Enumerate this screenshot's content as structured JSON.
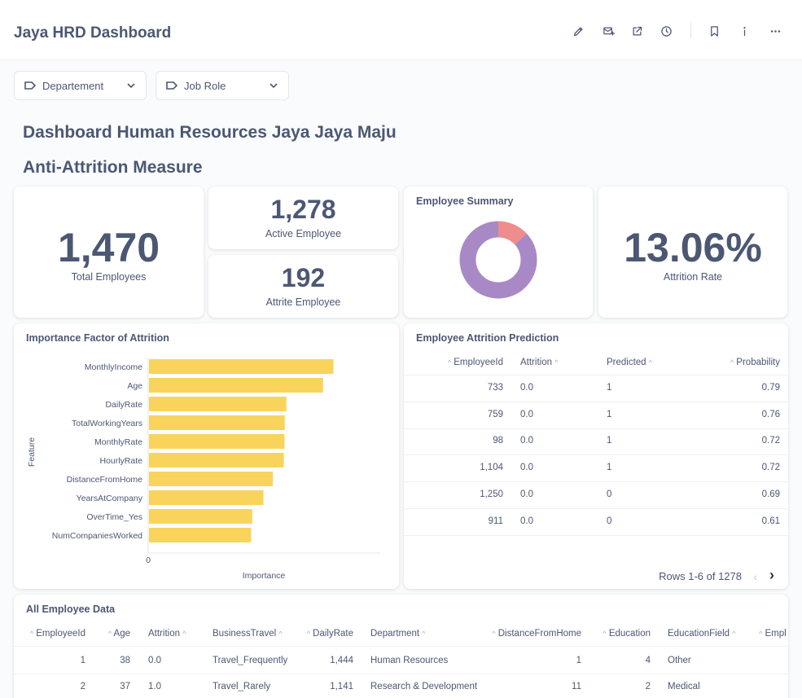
{
  "header": {
    "title": "Jaya HRD Dashboard"
  },
  "icons": [
    "pencil-icon",
    "subscription-icon",
    "share-icon",
    "history-icon",
    "bookmark-icon",
    "info-icon",
    "more-icon"
  ],
  "filters": [
    {
      "label": "Departement"
    },
    {
      "label": "Job Role"
    }
  ],
  "headings": {
    "main": "Dashboard Human Resources Jaya Jaya Maju",
    "section": "Anti-Attrition Measure"
  },
  "kpis": {
    "total": {
      "value": "1,470",
      "label": "Total Employees"
    },
    "active": {
      "value": "1,278",
      "label": "Active Employee"
    },
    "attrite": {
      "value": "192",
      "label": "Attrite Employee"
    },
    "rate": {
      "value": "13.06%",
      "label": "Attrition Rate"
    }
  },
  "summary": {
    "title": "Employee Summary",
    "colors": {
      "active": "#a989c5",
      "attrite": "#ef8c8c"
    }
  },
  "chart_data": {
    "type": "bar",
    "orientation": "horizontal",
    "title": "Importance Factor of Attrition",
    "xlabel": "Importance",
    "ylabel": "Feature",
    "x_tick": "0",
    "color": "#f9d45c",
    "categories": [
      "MonthlyIncome",
      "Age",
      "DailyRate",
      "TotalWorkingYears",
      "MonthlyRate",
      "HourlyRate",
      "DistanceFromHome",
      "YearsAtCompany",
      "OverTime_Yes",
      "NumCompaniesWorked"
    ],
    "values": [
      0.0795,
      0.075,
      0.0592,
      0.0585,
      0.0584,
      0.0581,
      0.0534,
      0.0493,
      0.0445,
      0.044
    ],
    "xlim": [
      0,
      0.1
    ]
  },
  "prediction": {
    "title": "Employee Attrition Prediction",
    "columns": [
      "EmployeeId",
      "Attrition",
      "Predicted",
      "Probability"
    ],
    "rows": [
      [
        "733",
        "0.0",
        "1",
        "0.79"
      ],
      [
        "759",
        "0.0",
        "1",
        "0.76"
      ],
      [
        "98",
        "0.0",
        "1",
        "0.72"
      ],
      [
        "1,104",
        "0.0",
        "1",
        "0.72"
      ],
      [
        "1,250",
        "0.0",
        "0",
        "0.69"
      ],
      [
        "911",
        "0.0",
        "0",
        "0.61"
      ]
    ],
    "pagination": "Rows 1-6 of 1278"
  },
  "all_data": {
    "title": "All Employee Data",
    "columns": [
      "EmployeeId",
      "Age",
      "Attrition",
      "BusinessTravel",
      "DailyRate",
      "Department",
      "DistanceFromHome",
      "Education",
      "EducationField",
      "Empl"
    ],
    "rows": [
      [
        "1",
        "38",
        "0.0",
        "Travel_Frequently",
        "1,444",
        "Human Resources",
        "1",
        "4",
        "Other"
      ],
      [
        "2",
        "37",
        "1.0",
        "Travel_Rarely",
        "1,141",
        "Research & Development",
        "11",
        "2",
        "Medical"
      ]
    ]
  }
}
